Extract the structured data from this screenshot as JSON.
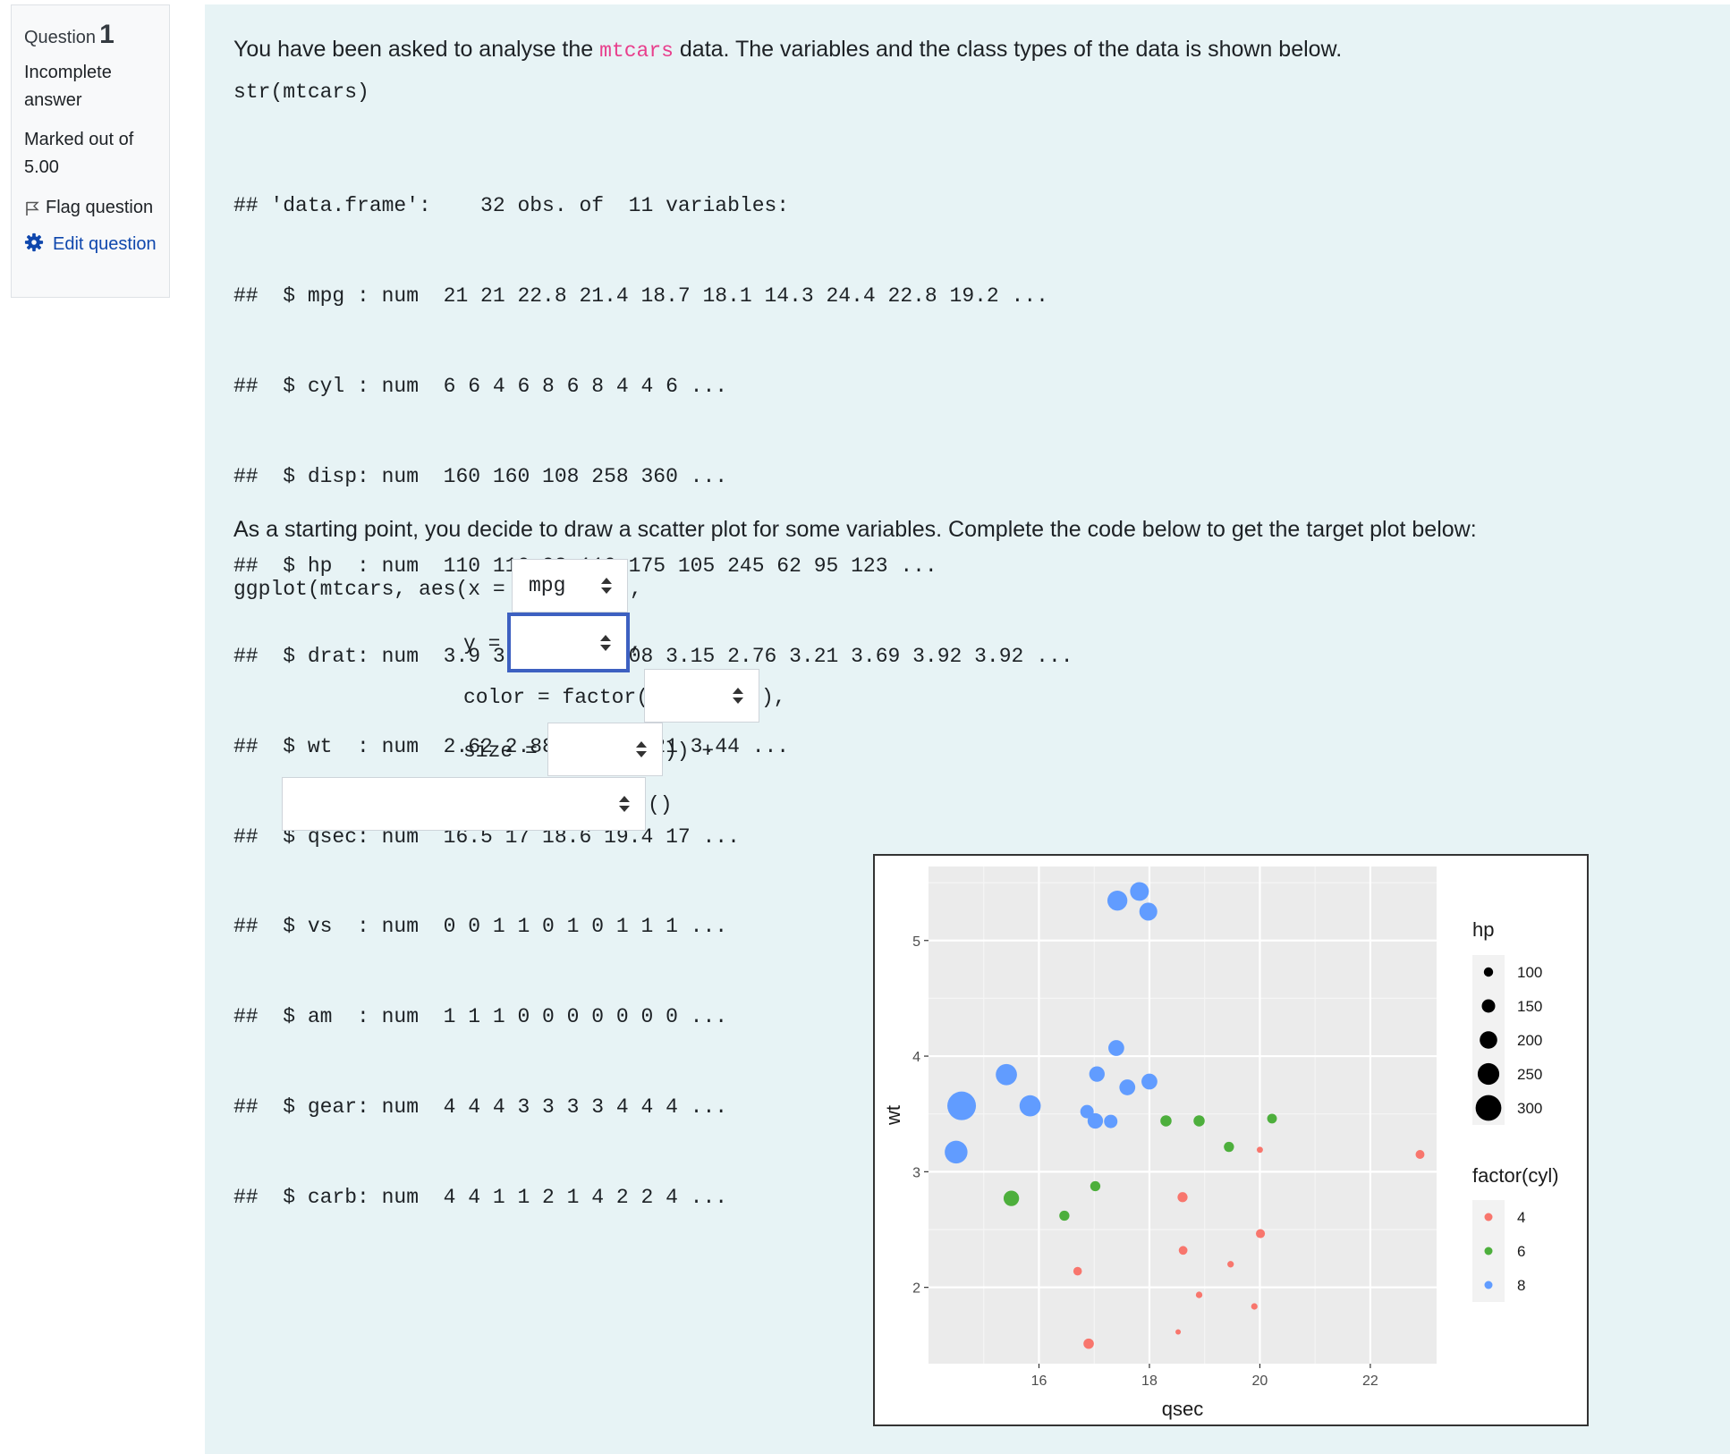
{
  "info": {
    "question_label": "Question",
    "question_number": "1",
    "state": "Incomplete answer",
    "grade": "Marked out of 5.00",
    "flag_label": "Flag question",
    "edit_label": "Edit question"
  },
  "question": {
    "intro_before": "You have been asked to analyse the ",
    "intro_code": "mtcars",
    "intro_after": " data. The variables and the class types of the data is shown below.",
    "str_call": "str(mtcars)",
    "str_output": [
      "## 'data.frame':    32 obs. of  11 variables:",
      "##  $ mpg : num  21 21 22.8 21.4 18.7 18.1 14.3 24.4 22.8 19.2 ...",
      "##  $ cyl : num  6 6 4 6 8 6 8 4 4 6 ...",
      "##  $ disp: num  160 160 108 258 360 ...",
      "##  $ hp  : num  110 110 93 110 175 105 245 62 95 123 ...",
      "##  $ drat: num  3.9 3.9 3.85 3.08 3.15 2.76 3.21 3.69 3.92 3.92 ...",
      "##  $ wt  : num  2.62 2.88 2.32 3.21 3.44 ...",
      "##  $ qsec: num  16.5 17 18.6 19.4 17 ...",
      "##  $ vs  : num  0 0 1 1 0 1 0 1 1 1 ...",
      "##  $ am  : num  1 1 1 0 0 0 0 0 0 0 ...",
      "##  $ gear: num  4 4 4 3 3 3 3 4 4 4 ...",
      "##  $ carb: num  4 4 1 1 2 1 4 2 2 4 ..."
    ],
    "instruction": "As a starting point, you decide to draw a scatter plot for some variables. Complete the code below to get the target plot below:"
  },
  "code": {
    "line1_prefix": "ggplot(mtcars, aes(x = ",
    "line1_suffix": ",",
    "line2_prefix": "y = ",
    "line2_suffix": ",",
    "line3_prefix": "color = factor(",
    "line3_suffix": "),",
    "line4_prefix": "size = ",
    "line4_suffix": ")) +",
    "line5_suffix": "()",
    "select_x_value": "mpg",
    "select_y_value": "",
    "select_color_value": "",
    "select_size_value": "",
    "select_geom_value": ""
  },
  "colors": {
    "cyl4": "#f8766d",
    "cyl6": "#4daf3c",
    "cyl8": "#619cff",
    "panel": "#ebebeb",
    "accent": "#0f47ad",
    "code_pink": "#e83e8c"
  },
  "chart_data": {
    "type": "scatter",
    "xlabel": "qsec",
    "ylabel": "wt",
    "xlim": [
      14.5,
      22.9
    ],
    "ylim": [
      1.51,
      5.42
    ],
    "xticks": [
      16,
      18,
      20,
      22
    ],
    "yticks": [
      2,
      3,
      4,
      5
    ],
    "grid": true,
    "size_legend": {
      "title": "hp",
      "values": [
        100,
        150,
        200,
        250,
        300
      ]
    },
    "color_legend": {
      "title": "factor(cyl)",
      "values": [
        "4",
        "6",
        "8"
      ]
    },
    "legend_position": "right",
    "points": [
      {
        "qsec": 16.46,
        "wt": 2.62,
        "hp": 110,
        "cyl": 6
      },
      {
        "qsec": 17.02,
        "wt": 2.875,
        "hp": 110,
        "cyl": 6
      },
      {
        "qsec": 18.61,
        "wt": 2.32,
        "hp": 93,
        "cyl": 4
      },
      {
        "qsec": 19.44,
        "wt": 3.215,
        "hp": 110,
        "cyl": 6
      },
      {
        "qsec": 17.02,
        "wt": 3.44,
        "hp": 175,
        "cyl": 8
      },
      {
        "qsec": 20.22,
        "wt": 3.46,
        "hp": 105,
        "cyl": 6
      },
      {
        "qsec": 15.84,
        "wt": 3.57,
        "hp": 245,
        "cyl": 8
      },
      {
        "qsec": 20.0,
        "wt": 3.19,
        "hp": 62,
        "cyl": 4
      },
      {
        "qsec": 22.9,
        "wt": 3.15,
        "hp": 95,
        "cyl": 4
      },
      {
        "qsec": 18.3,
        "wt": 3.44,
        "hp": 123,
        "cyl": 6
      },
      {
        "qsec": 18.9,
        "wt": 3.44,
        "hp": 123,
        "cyl": 6
      },
      {
        "qsec": 17.4,
        "wt": 4.07,
        "hp": 180,
        "cyl": 8
      },
      {
        "qsec": 17.6,
        "wt": 3.73,
        "hp": 180,
        "cyl": 8
      },
      {
        "qsec": 18.0,
        "wt": 3.78,
        "hp": 180,
        "cyl": 8
      },
      {
        "qsec": 17.98,
        "wt": 5.25,
        "hp": 205,
        "cyl": 8
      },
      {
        "qsec": 17.82,
        "wt": 5.424,
        "hp": 215,
        "cyl": 8
      },
      {
        "qsec": 17.42,
        "wt": 5.345,
        "hp": 230,
        "cyl": 8
      },
      {
        "qsec": 19.47,
        "wt": 2.2,
        "hp": 66,
        "cyl": 4
      },
      {
        "qsec": 18.52,
        "wt": 1.615,
        "hp": 52,
        "cyl": 4
      },
      {
        "qsec": 19.9,
        "wt": 1.835,
        "hp": 65,
        "cyl": 4
      },
      {
        "qsec": 20.01,
        "wt": 2.465,
        "hp": 97,
        "cyl": 4
      },
      {
        "qsec": 16.87,
        "wt": 3.52,
        "hp": 150,
        "cyl": 8
      },
      {
        "qsec": 17.3,
        "wt": 3.435,
        "hp": 150,
        "cyl": 8
      },
      {
        "qsec": 15.41,
        "wt": 3.84,
        "hp": 245,
        "cyl": 8
      },
      {
        "qsec": 17.05,
        "wt": 3.845,
        "hp": 175,
        "cyl": 8
      },
      {
        "qsec": 18.9,
        "wt": 1.935,
        "hp": 66,
        "cyl": 4
      },
      {
        "qsec": 16.7,
        "wt": 2.14,
        "hp": 91,
        "cyl": 4
      },
      {
        "qsec": 16.9,
        "wt": 1.513,
        "hp": 113,
        "cyl": 4
      },
      {
        "qsec": 14.5,
        "wt": 3.17,
        "hp": 264,
        "cyl": 8
      },
      {
        "qsec": 15.5,
        "wt": 2.77,
        "hp": 175,
        "cyl": 6
      },
      {
        "qsec": 14.6,
        "wt": 3.57,
        "hp": 335,
        "cyl": 8
      },
      {
        "qsec": 18.6,
        "wt": 2.78,
        "hp": 109,
        "cyl": 4
      }
    ]
  }
}
